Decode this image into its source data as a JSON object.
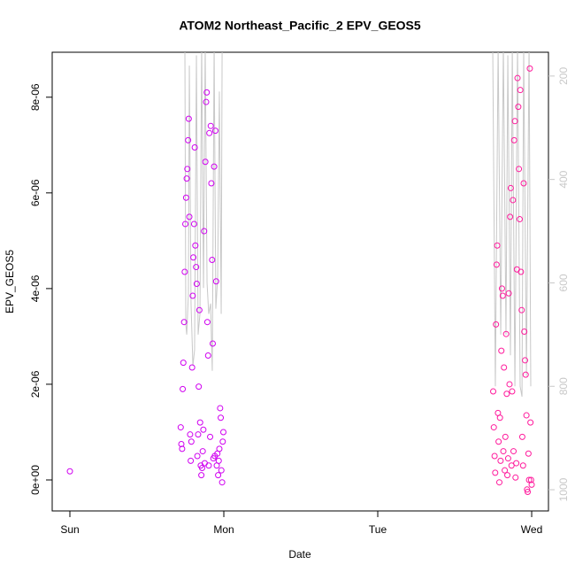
{
  "chart_data": {
    "type": "scatter",
    "title": "ATOM2 Northeast_Pacific_2 EPV_GEOS5",
    "xlabel": "Date",
    "ylabel": "EPV_GEOS5",
    "xlim": [
      -0.115,
      3.109
    ],
    "xticks": [
      {
        "value": 0,
        "label": "Sun"
      },
      {
        "value": 1,
        "label": "Mon"
      },
      {
        "value": 2,
        "label": "Tue"
      },
      {
        "value": 3,
        "label": "Wed"
      }
    ],
    "ylim": [
      -6.48e-07,
      8.94e-06
    ],
    "yticks": [
      {
        "value": 0,
        "label": "0e+00"
      },
      {
        "value": 2e-06,
        "label": "2e-06"
      },
      {
        "value": 4e-06,
        "label": "4e-06"
      },
      {
        "value": 6e-06,
        "label": "6e-06"
      },
      {
        "value": 8e-06,
        "label": "8e-06"
      }
    ],
    "y2lim": [
      1041,
      154
    ],
    "y2ticks": [
      200,
      400,
      600,
      800,
      1000
    ],
    "y2color": "#c8c8c8",
    "series": [
      {
        "color": "#d000f0",
        "x": [
          0.0,
          0.72,
          0.724,
          0.729,
          0.733,
          0.737,
          0.742,
          0.746,
          0.75,
          0.755,
          0.759,
          0.763,
          0.768,
          0.772,
          0.776,
          0.781,
          0.785,
          0.789,
          0.794,
          0.798,
          0.802,
          0.807,
          0.811,
          0.815,
          0.82,
          0.824,
          0.828,
          0.833,
          0.837,
          0.841,
          0.846,
          0.85,
          0.854,
          0.859,
          0.863,
          0.867,
          0.872,
          0.876,
          0.88,
          0.885,
          0.889,
          0.893,
          0.898,
          0.902,
          0.906,
          0.911,
          0.915,
          0.919,
          0.924,
          0.928,
          0.932,
          0.937,
          0.941,
          0.945,
          0.95,
          0.954,
          0.958,
          0.963,
          0.967,
          0.971,
          0.976,
          0.98,
          0.984,
          0.989,
          0.993,
          0.997
        ],
        "values": [
          1.8e-07,
          1.1e-06,
          7.5e-07,
          6.5e-07,
          1.9e-06,
          2.45e-06,
          3.3e-06,
          4.35e-06,
          5.35e-06,
          5.9e-06,
          6.3e-06,
          6.5e-06,
          7.1e-06,
          7.55e-06,
          5.5e-06,
          9.5e-07,
          4e-07,
          8e-07,
          2.35e-06,
          3.85e-06,
          4.65e-06,
          5.35e-06,
          6.95e-06,
          4.9e-06,
          4.45e-06,
          4.1e-06,
          5e-07,
          9.5e-07,
          1.95e-06,
          3.55e-06,
          1.2e-06,
          3e-07,
          1e-07,
          2.5e-07,
          6e-07,
          1.05e-06,
          5.2e-06,
          3.5e-07,
          6.65e-06,
          7.9e-06,
          8.1e-06,
          3.3e-06,
          2.6e-06,
          3e-07,
          7.25e-06,
          9e-07,
          7.4e-06,
          6.2e-06,
          4.6e-06,
          2.85e-06,
          4.5e-07,
          6.55e-06,
          5e-07,
          7.3e-06,
          4.15e-06,
          3e-07,
          5.5e-07,
          1e-07,
          4e-07,
          6.5e-07,
          1.5e-06,
          1.3e-06,
          2e-07,
          -5e-08,
          8e-07,
          1e-06
        ]
      },
      {
        "color": "#ff1a9c",
        "x": [
          2.75,
          2.754,
          2.759,
          2.763,
          2.768,
          2.772,
          2.776,
          2.781,
          2.785,
          2.79,
          2.794,
          2.798,
          2.803,
          2.807,
          2.812,
          2.816,
          2.82,
          2.825,
          2.829,
          2.834,
          2.838,
          2.842,
          2.847,
          2.851,
          2.856,
          2.86,
          2.864,
          2.869,
          2.873,
          2.878,
          2.882,
          2.886,
          2.891,
          2.895,
          2.9,
          2.904,
          2.908,
          2.913,
          2.917,
          2.922,
          2.926,
          2.93,
          2.935,
          2.939,
          2.944,
          2.948,
          2.952,
          2.957,
          2.961,
          2.966,
          2.97,
          2.974,
          2.979,
          2.983,
          2.988,
          2.992,
          2.996,
          3.0
        ],
        "values": [
          1.85e-06,
          1.1e-06,
          5e-07,
          1.5e-07,
          3.25e-06,
          4.5e-06,
          4.9e-06,
          1.4e-06,
          8e-07,
          -5e-08,
          1.3e-06,
          4e-07,
          2.7e-06,
          4e-06,
          3.85e-06,
          6e-07,
          2.35e-06,
          2e-07,
          9e-07,
          3.05e-06,
          1.8e-06,
          1e-07,
          4.5e-07,
          3.9e-06,
          2e-06,
          5.5e-06,
          6.1e-06,
          3e-07,
          1.85e-06,
          5.85e-06,
          6e-07,
          7.1e-06,
          7.5e-06,
          5e-08,
          3.5e-07,
          4.4e-06,
          8.4e-06,
          7.8e-06,
          6.5e-06,
          5.45e-06,
          8.15e-06,
          4.35e-06,
          3.55e-06,
          9e-07,
          3e-07,
          6.2e-06,
          3.1e-06,
          2.5e-06,
          2.2e-06,
          1.35e-06,
          -2e-07,
          -2.5e-07,
          5.5e-07,
          0,
          8.6e-06,
          1.2e-06,
          0,
          -1e-07
        ]
      },
      {
        "type": "line",
        "axis": "y2",
        "color": "#c8c8c8",
        "x": [
          0.747,
          0.753,
          0.759,
          0.77,
          0.776,
          0.787,
          0.799,
          0.81,
          0.822,
          0.833,
          0.845,
          0.856,
          0.868,
          0.879,
          0.891,
          0.902,
          0.914,
          0.925,
          0.937,
          0.948,
          0.96,
          0.971,
          0.983,
          0.989,
          null,
          2.661,
          2.747,
          2.764,
          2.782,
          2.799,
          2.816,
          2.833,
          2.845,
          2.862,
          2.874,
          2.891,
          2.908,
          2.925,
          2.937,
          2.948,
          2.966,
          2.983,
          2.994
        ],
        "values": [
          140,
          680,
          700,
          620,
          180,
          640,
          760,
          730,
          160,
          700,
          660,
          140,
          610,
          140,
          600,
          660,
          640,
          770,
          140,
          650,
          590,
          230,
          660,
          140,
          null,
          140,
          145,
          800,
          140,
          700,
          140,
          700,
          160,
          740,
          140,
          800,
          140,
          800,
          820,
          150,
          780,
          140,
          800
        ]
      }
    ]
  }
}
